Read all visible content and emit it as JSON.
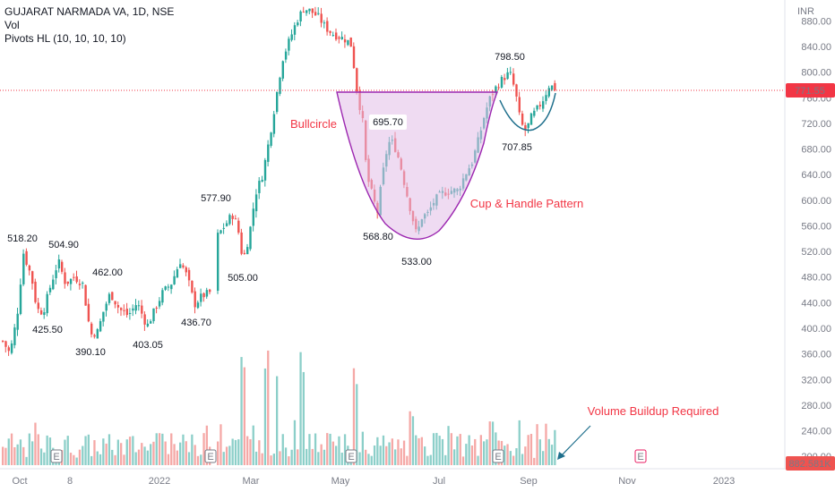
{
  "legend": {
    "symbol": "GUJARAT NARMADA VA, 1D, NSE",
    "vol": "Vol",
    "pivots": "Pivots HL (10, 10, 10, 10)"
  },
  "currency": "INR",
  "price_tag": "771.55",
  "volume_tag": "882.581K",
  "colors": {
    "up": "#26a69a",
    "down": "#ef5350",
    "annotation": "#f23645",
    "price_tag": "#f23645",
    "pattern_fill": "#e1bee7",
    "pattern_stroke": "#9c27b0",
    "handle_stroke": "#1e6f8c",
    "earnings": "#787b86",
    "earnings_future": "#e91e63"
  },
  "chart_data": {
    "type": "candlestick",
    "price_axis": {
      "ticks": [
        "880.00",
        "840.00",
        "800.00",
        "760.00",
        "720.00",
        "680.00",
        "640.00",
        "600.00",
        "560.00",
        "520.00",
        "480.00",
        "440.00",
        "400.00",
        "360.00",
        "320.00",
        "280.00",
        "240.00",
        "200.00"
      ],
      "range": [
        200,
        880
      ]
    },
    "time_axis": {
      "labels": [
        "Oct",
        "8",
        "2022",
        "Mar",
        "May",
        "Jul",
        "Sep",
        "Nov",
        "2023"
      ]
    },
    "pivots": [
      {
        "label": "518.20",
        "price": 518.2,
        "kind": "high"
      },
      {
        "label": "425.50",
        "price": 425.5,
        "kind": "low"
      },
      {
        "label": "504.90",
        "price": 504.9,
        "kind": "high"
      },
      {
        "label": "390.10",
        "price": 390.1,
        "kind": "low"
      },
      {
        "label": "462.00",
        "price": 462.0,
        "kind": "high"
      },
      {
        "label": "403.05",
        "price": 403.05,
        "kind": "low"
      },
      {
        "label": "436.70",
        "price": 436.7,
        "kind": "low"
      },
      {
        "label": "577.90",
        "price": 577.9,
        "kind": "high"
      },
      {
        "label": "505.00",
        "price": 505.0,
        "kind": "low"
      },
      {
        "label": "695.70",
        "price": 695.7,
        "kind": "high"
      },
      {
        "label": "568.80",
        "price": 568.8,
        "kind": "low"
      },
      {
        "label": "533.00",
        "price": 533.0,
        "kind": "low"
      },
      {
        "label": "798.50",
        "price": 798.5,
        "kind": "high"
      },
      {
        "label": "707.85",
        "price": 707.85,
        "kind": "low"
      }
    ],
    "annotations": [
      "Bullcircle",
      "Cup & Handle Pattern",
      "Volume Buildup Required"
    ],
    "earnings_markers": [
      "E",
      "E",
      "E",
      "E",
      "E"
    ],
    "last_price": 771.55
  }
}
